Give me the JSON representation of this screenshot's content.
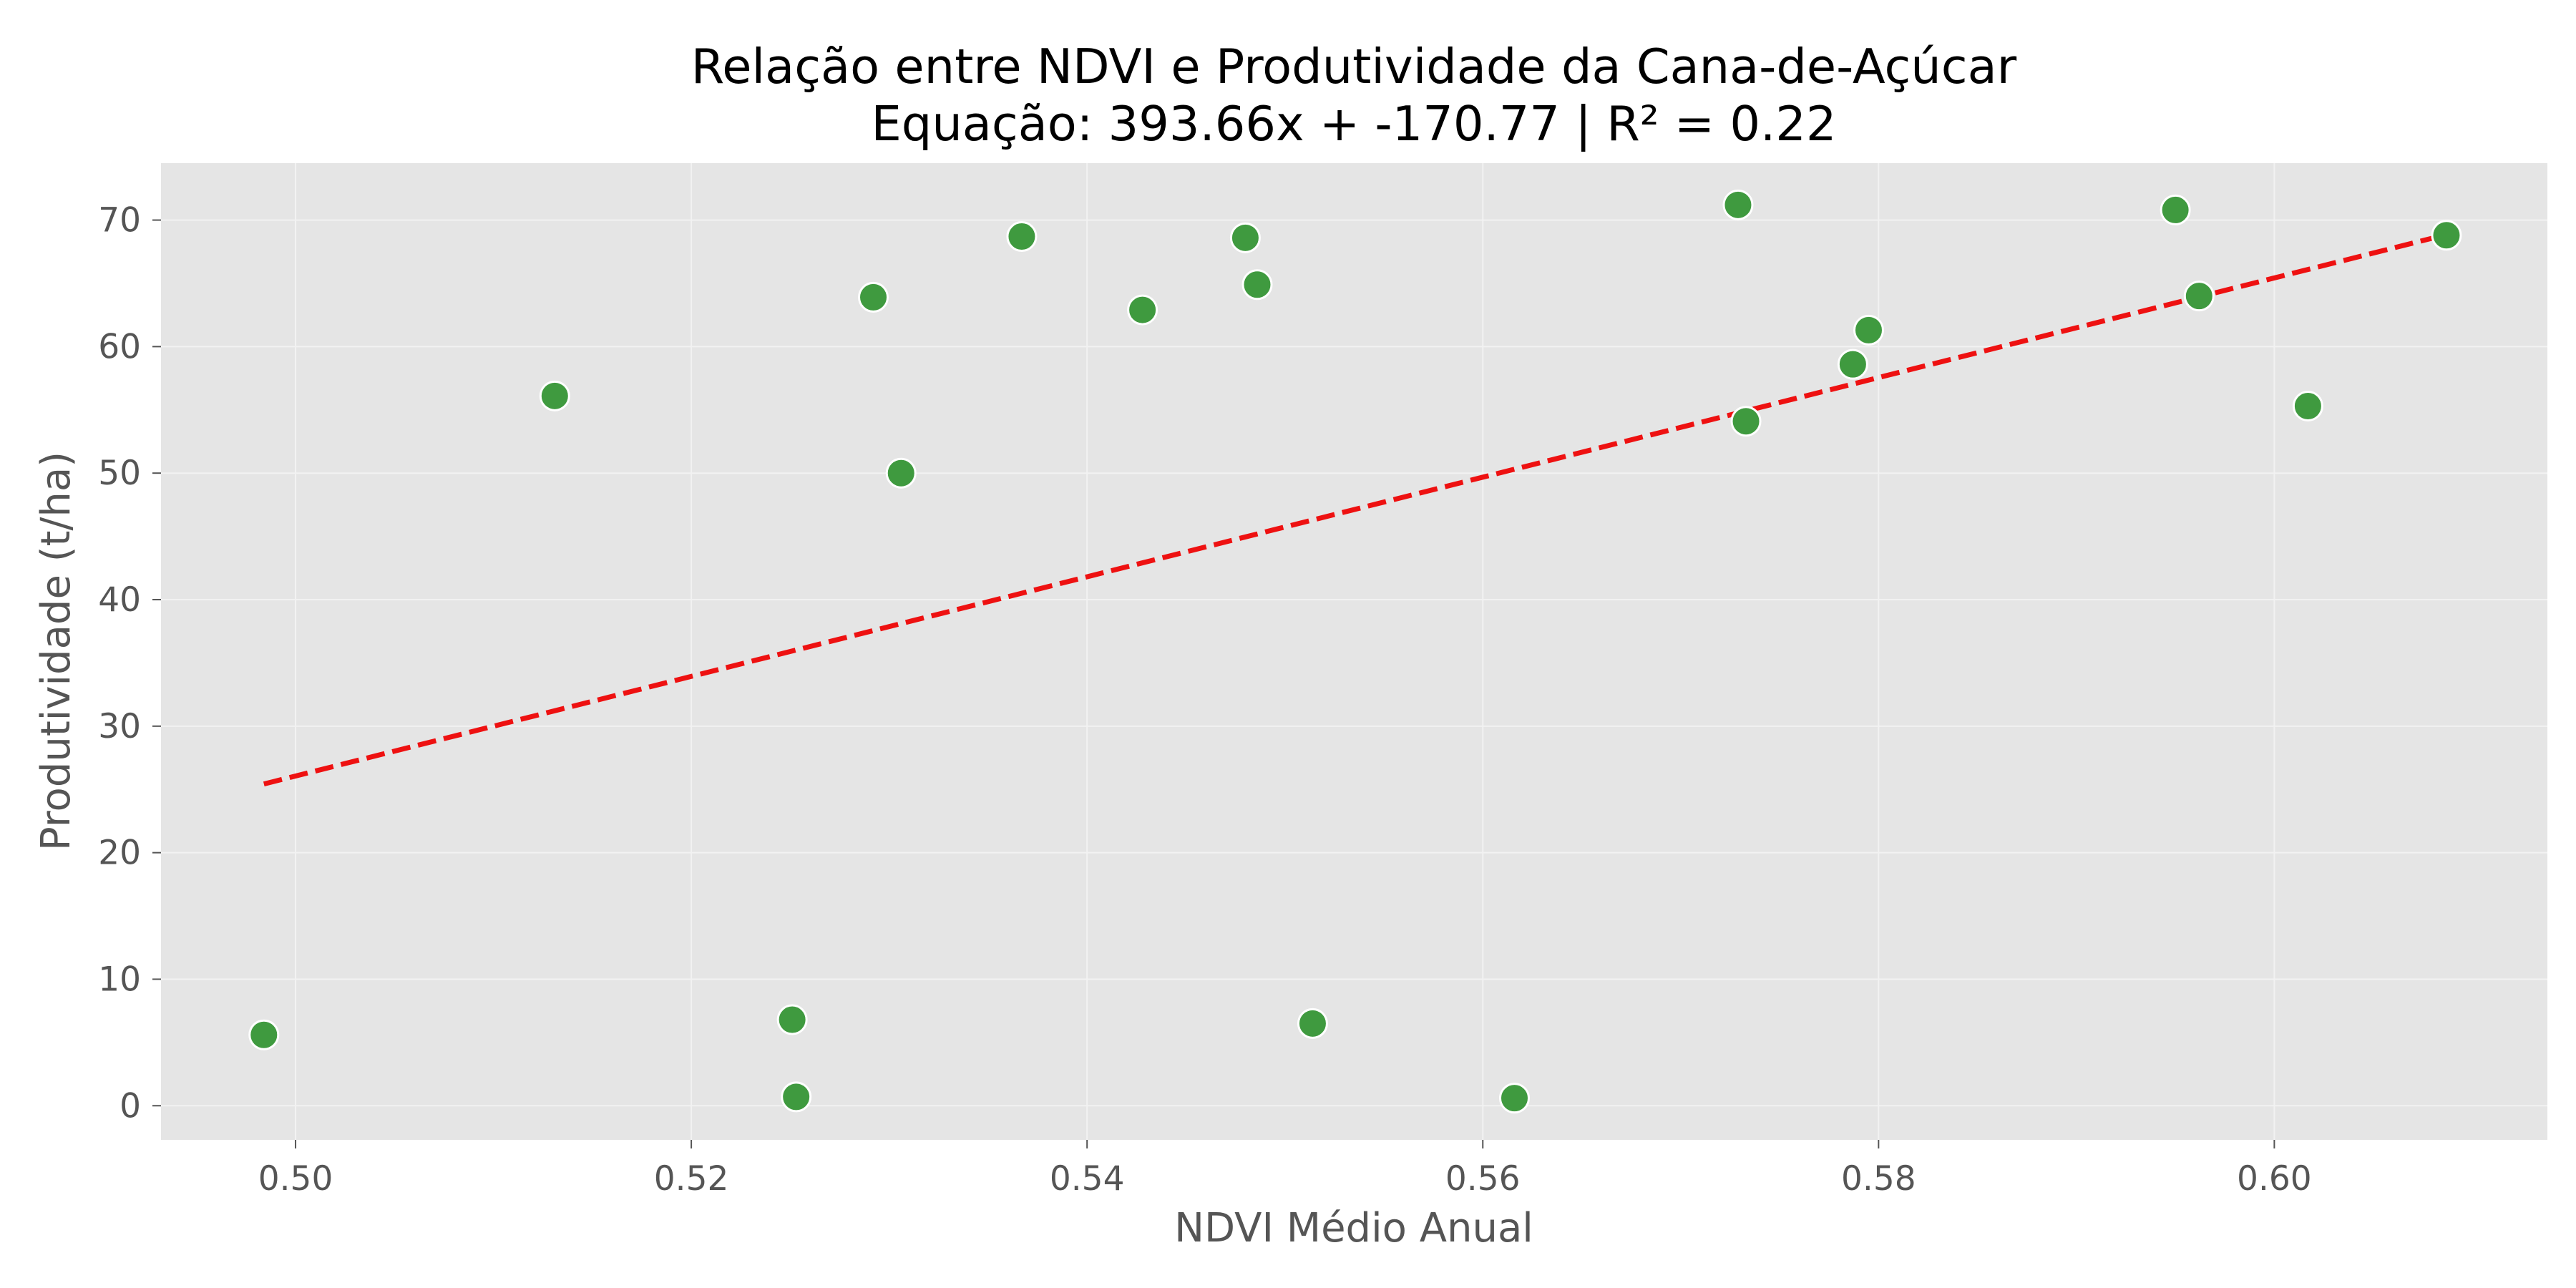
{
  "chart_data": {
    "type": "scatter",
    "title": "Relação entre NDVI e Produtividade da Cana-de-Açúcar",
    "subtitle": "Equação: 393.66x + -170.77 | R² = 0.22",
    "xlabel": "NDVI Médio Anual",
    "ylabel": "Produtividade (t/ha)",
    "xlim": [
      0.4932,
      0.6138
    ],
    "ylim": [
      -2.7,
      74.5
    ],
    "x_ticks": [
      0.5,
      0.52,
      0.54,
      0.56,
      0.58,
      0.6
    ],
    "x_tick_labels": [
      "0.50",
      "0.52",
      "0.54",
      "0.56",
      "0.58",
      "0.60"
    ],
    "y_ticks": [
      0,
      10,
      20,
      30,
      40,
      50,
      60,
      70
    ],
    "y_tick_labels": [
      "0",
      "10",
      "20",
      "30",
      "40",
      "50",
      "60",
      "70"
    ],
    "grid": true,
    "colors": {
      "points": "#3f9a3f",
      "point_edge": "#ffffff",
      "regression_line": "#ee1111",
      "plot_background": "#e5e5e5",
      "grid": "#f2f2f2"
    },
    "regression": {
      "slope": 393.66,
      "intercept": -170.77,
      "x_range": [
        0.4984,
        0.6087
      ],
      "style": "dashed"
    },
    "points": [
      {
        "x": 0.4984,
        "y": 5.6
      },
      {
        "x": 0.5131,
        "y": 56.1
      },
      {
        "x": 0.5251,
        "y": 6.8
      },
      {
        "x": 0.5253,
        "y": 0.7
      },
      {
        "x": 0.5292,
        "y": 63.9
      },
      {
        "x": 0.5306,
        "y": 50.0
      },
      {
        "x": 0.5367,
        "y": 68.7
      },
      {
        "x": 0.5428,
        "y": 62.9
      },
      {
        "x": 0.548,
        "y": 68.6
      },
      {
        "x": 0.5486,
        "y": 64.9
      },
      {
        "x": 0.5514,
        "y": 6.5
      },
      {
        "x": 0.5616,
        "y": 0.6
      },
      {
        "x": 0.5729,
        "y": 71.2
      },
      {
        "x": 0.5733,
        "y": 54.1
      },
      {
        "x": 0.5787,
        "y": 58.6
      },
      {
        "x": 0.5795,
        "y": 61.3
      },
      {
        "x": 0.595,
        "y": 70.8
      },
      {
        "x": 0.5962,
        "y": 64.0
      },
      {
        "x": 0.6017,
        "y": 55.3
      },
      {
        "x": 0.6087,
        "y": 68.8
      }
    ]
  }
}
